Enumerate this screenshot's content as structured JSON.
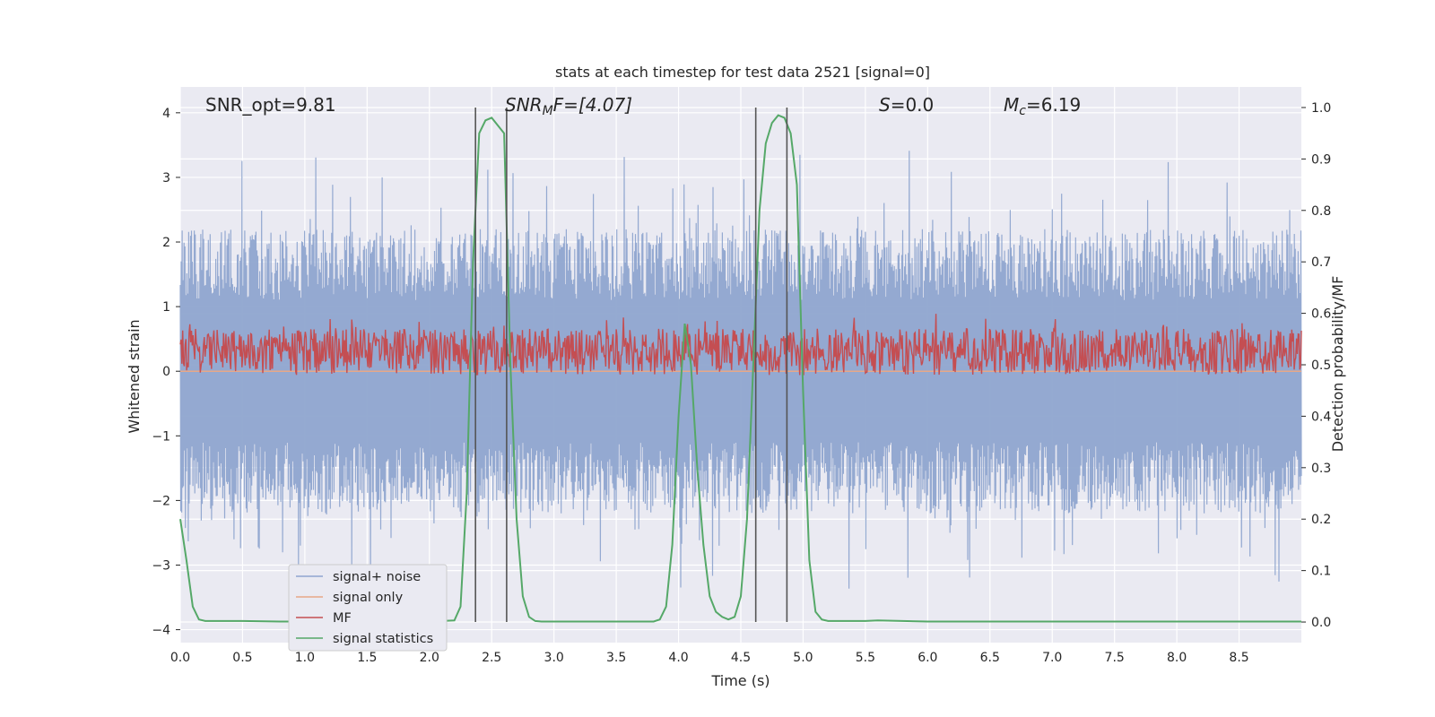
{
  "chart_data": {
    "type": "line",
    "title": "stats at each timestep for test data 2521 [signal=0]",
    "xlabel": "Time (s)",
    "ylabel": "Whitened strain",
    "y2label": "Detection probability/MF",
    "xlim": [
      0,
      9.0
    ],
    "ylim": [
      -4.2,
      4.4
    ],
    "y2lim": [
      -0.04,
      1.04
    ],
    "x_ticks": [
      "0.0",
      "0.5",
      "1.0",
      "1.5",
      "2.0",
      "2.5",
      "3.0",
      "3.5",
      "4.0",
      "4.5",
      "5.0",
      "5.5",
      "6.0",
      "6.5",
      "7.0",
      "7.5",
      "8.0",
      "8.5"
    ],
    "y_ticks": [
      "4",
      "3",
      "2",
      "1",
      "0",
      "−1",
      "−2",
      "−3",
      "−4"
    ],
    "y2_ticks": [
      "1.0",
      "0.9",
      "0.8",
      "0.7",
      "0.6",
      "0.5",
      "0.4",
      "0.3",
      "0.2",
      "0.1",
      "0.0"
    ],
    "grid": true,
    "legend_position": "lower-left",
    "annotations": {
      "snr_opt": "SNR_opt=9.81",
      "snr_mf_sym": "SNR",
      "snr_mf_sub": "M",
      "snr_mf_rest": "F=[4.07]",
      "s_sym": "S",
      "s_rest": "=0.0",
      "mc_sym": "M",
      "mc_sub": "c",
      "mc_rest": "=6.19"
    },
    "vertical_lines_x": [
      2.37,
      2.62,
      4.62,
      4.87
    ],
    "series": [
      {
        "name": "signal+ noise",
        "color": "#8fa5cf",
        "axis": "left",
        "description_range": [
          -4.0,
          4.0
        ]
      },
      {
        "name": "signal only",
        "color": "#e8a888",
        "axis": "left",
        "values_constant": 0.0
      },
      {
        "name": "MF",
        "color": "#c44e52",
        "axis": "right",
        "range": [
          0.48,
          0.6
        ]
      },
      {
        "name": "signal statistics",
        "color": "#55a868",
        "axis": "right",
        "x": [
          0.0,
          0.05,
          0.1,
          0.15,
          0.2,
          0.3,
          0.5,
          0.8,
          1.0,
          1.5,
          2.0,
          2.2,
          2.25,
          2.3,
          2.35,
          2.4,
          2.45,
          2.5,
          2.6,
          2.65,
          2.7,
          2.75,
          2.8,
          2.85,
          2.9,
          3.0,
          3.5,
          3.8,
          3.85,
          3.9,
          3.95,
          4.0,
          4.05,
          4.1,
          4.15,
          4.2,
          4.25,
          4.3,
          4.35,
          4.4,
          4.45,
          4.5,
          4.55,
          4.6,
          4.65,
          4.7,
          4.75,
          4.8,
          4.85,
          4.9,
          4.95,
          5.0,
          5.05,
          5.1,
          5.15,
          5.2,
          5.5,
          5.6,
          6.0,
          7.0,
          8.0,
          9.0
        ],
        "values": [
          0.2,
          0.12,
          0.03,
          0.005,
          0.002,
          0.002,
          0.002,
          0.001,
          0.001,
          0.001,
          0.001,
          0.003,
          0.03,
          0.25,
          0.7,
          0.95,
          0.975,
          0.98,
          0.95,
          0.5,
          0.2,
          0.05,
          0.01,
          0.002,
          0.001,
          0.001,
          0.001,
          0.001,
          0.005,
          0.03,
          0.15,
          0.4,
          0.58,
          0.5,
          0.3,
          0.15,
          0.05,
          0.02,
          0.01,
          0.005,
          0.01,
          0.05,
          0.2,
          0.5,
          0.8,
          0.93,
          0.97,
          0.985,
          0.98,
          0.95,
          0.85,
          0.45,
          0.12,
          0.02,
          0.005,
          0.002,
          0.002,
          0.003,
          0.001,
          0.001,
          0.001,
          0.001
        ]
      }
    ]
  }
}
